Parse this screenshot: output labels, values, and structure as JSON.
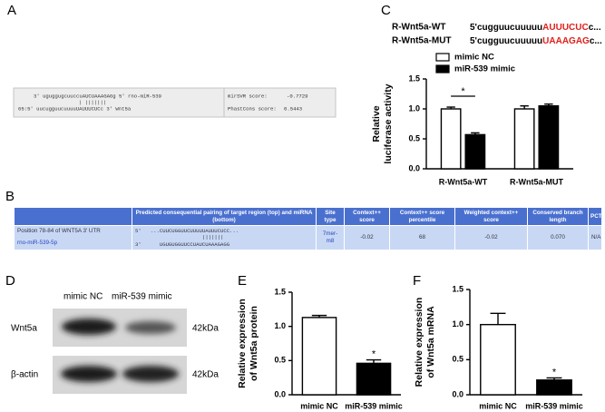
{
  "panel_labels": [
    "A",
    "B",
    "C",
    "D",
    "E",
    "F"
  ],
  "alignment": {
    "mirna_line": "3' uguggugcuuccuAUCUAAAGAGg 5' rno-miR-539",
    "pair_line": "| |||||||",
    "target_line": "65:5' uucugguucuuuuUAUUUCUCc 3' Wnt5a",
    "mirsvr_label": "mirSVR score:",
    "mirsvr_value": "-0.7729",
    "phastcons_label": "PhastCons score:",
    "phastcons_value": "0.5443"
  },
  "table": {
    "header": [
      "Predicted consequential pairing of target region (top) and miRNA (bottom)",
      "Site type",
      "Context++ score",
      "Context++ score percentile",
      "Weighted context++ score",
      "Conserved branch length",
      "PCT"
    ],
    "rows": [
      {
        "site": [
          "Position 78-84 of WNT5A 3' UTR",
          "rno-miR-539-5p"
        ],
        "pairing": [
          "5'   ...CUUCUGGUUCUUUUUAUUUCUCC...",
          "|||||||",
          "3'      UGUGUGGUUCCUAUCUAAAGAGG"
        ],
        "cells": [
          "7mer-m8",
          "-0.02",
          "68",
          "-0.02",
          "0.070",
          "N/A"
        ]
      }
    ]
  },
  "sequences": [
    {
      "label": "R-Wnt5a-WT",
      "seq": "5'cugguucuuuuu",
      "highlight": "AUUUCUC",
      "tail": "c..."
    },
    {
      "label": "R-Wnt5a-MUT",
      "seq": "5'cugguucuuuuu",
      "highlight": "UAAAGAG",
      "tail": "c..."
    }
  ],
  "blot": {
    "lanes": [
      "mimic NC",
      "miR-539 mimic"
    ],
    "bands": [
      {
        "name": "Wnt5a",
        "size": "42kDa"
      },
      {
        "name": "β-actin",
        "size": "42kDa"
      }
    ]
  },
  "chart_data": [
    {
      "type": "bar",
      "y_label": [
        "Relative",
        "luciferase activity"
      ],
      "categories": [
        "R-Wnt5a-WT",
        "R-Wnt5a-MUT"
      ],
      "series": [
        {
          "name": "mimic NC",
          "color": "#ffffff",
          "values": [
            1.0,
            1.0
          ],
          "errors": [
            0.03,
            0.05
          ]
        },
        {
          "name": "miR-539 mimic",
          "color": "#000000",
          "values": [
            0.57,
            1.05
          ],
          "errors": [
            0.03,
            0.03
          ]
        }
      ],
      "ylim": [
        0,
        1.5
      ],
      "yticks": [
        {
          "value": 0,
          "label": "0.0"
        },
        0.5,
        {
          "value": 1,
          "label": "1.0"
        },
        1.5
      ],
      "annotation": "*",
      "legend": "top-left"
    },
    {
      "type": "bar",
      "y_label": [
        "Relative expression",
        "of Wnt5a protein"
      ],
      "categories": [
        "mimic NC",
        "miR-539 mimic"
      ],
      "values": [
        1.13,
        0.46
      ],
      "errors": [
        0.03,
        0.05
      ],
      "colors": [
        "#ffffff",
        "#000000"
      ],
      "ylim": [
        0,
        1.5
      ],
      "yticks": [
        {
          "value": 0,
          "label": "0.0"
        },
        0.5,
        {
          "value": 1,
          "label": "1.0"
        },
        1.5
      ],
      "annotation": "*"
    },
    {
      "type": "bar",
      "y_label": [
        "Relative expression",
        "of Wnt5a mRNA"
      ],
      "categories": [
        "mimic NC",
        "miR-539 mimic"
      ],
      "values": [
        1.0,
        0.21
      ],
      "errors": [
        0.16,
        0.03
      ],
      "colors": [
        "#ffffff",
        "#000000"
      ],
      "ylim": [
        0,
        1.5
      ],
      "yticks": [
        {
          "value": 0,
          "label": "0.0"
        },
        0.5,
        {
          "value": 1,
          "label": "1.0"
        },
        1.5
      ],
      "annotation": "*"
    }
  ]
}
